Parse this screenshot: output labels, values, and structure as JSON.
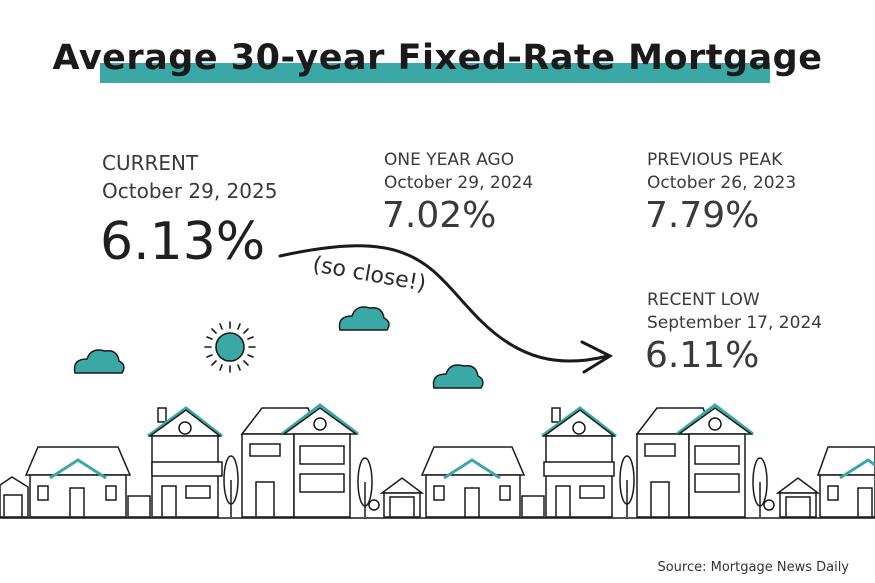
{
  "title": "Average 30-year Fixed-Rate Mortgage",
  "current": {
    "label": "CURRENT",
    "date": "October 29, 2025",
    "rate": "6.13%"
  },
  "one_year_ago": {
    "label": "ONE YEAR AGO",
    "date": "October 29, 2024",
    "rate": "7.02%"
  },
  "previous_peak": {
    "label": "PREVIOUS PEAK",
    "date": "October 26, 2023",
    "rate": "7.79%"
  },
  "recent_low": {
    "label": "RECENT LOW",
    "date": "September 17, 2024",
    "rate": "6.11%"
  },
  "annotation": "(so close!)",
  "source": "Source: Mortgage News Daily",
  "colors": {
    "accent": "#3aa9a6",
    "ink": "#1a1a1a"
  },
  "icons": [
    "sun-icon",
    "cloud-icon",
    "arrow-icon",
    "house-icon",
    "tree-icon"
  ]
}
